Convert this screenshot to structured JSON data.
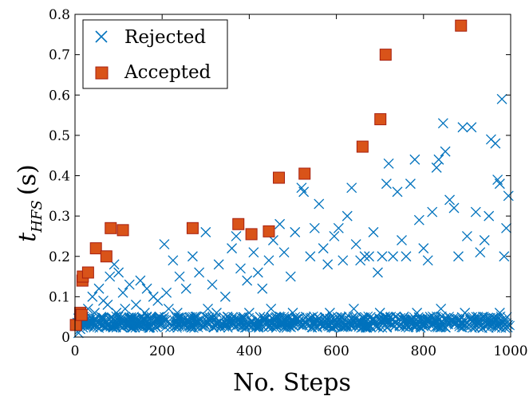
{
  "chart_data": {
    "type": "scatter",
    "xlabel": "No. Steps",
    "ylabel_main": "t",
    "ylabel_sub": "HFS",
    "ylabel_unit": "(s)",
    "xlim": [
      0,
      1000
    ],
    "ylim": [
      0,
      0.8
    ],
    "xticks": [
      0,
      200,
      400,
      600,
      800,
      1000
    ],
    "yticks": [
      0,
      0.1,
      0.2,
      0.3,
      0.4,
      0.5,
      0.6,
      0.7,
      0.8
    ],
    "xtick_labels": [
      "0",
      "200",
      "400",
      "600",
      "800",
      "1000"
    ],
    "ytick_labels": [
      "0",
      "0.1",
      "0.2",
      "0.3",
      "0.4",
      "0.5",
      "0.6",
      "0.7",
      "0.8"
    ],
    "legend_position": "top-left",
    "grid": false,
    "series": [
      {
        "name": "Rejected",
        "marker": "x",
        "color": "#0072BD",
        "points": [
          [
            8,
            0.01
          ],
          [
            12,
            0.02
          ],
          [
            20,
            0.05
          ],
          [
            30,
            0.07
          ],
          [
            40,
            0.1
          ],
          [
            55,
            0.12
          ],
          [
            65,
            0.09
          ],
          [
            80,
            0.15
          ],
          [
            90,
            0.18
          ],
          [
            100,
            0.16
          ],
          [
            110,
            0.11
          ],
          [
            125,
            0.13
          ],
          [
            140,
            0.08
          ],
          [
            150,
            0.14
          ],
          [
            165,
            0.12
          ],
          [
            180,
            0.1
          ],
          [
            190,
            0.09
          ],
          [
            205,
            0.23
          ],
          [
            210,
            0.11
          ],
          [
            225,
            0.19
          ],
          [
            240,
            0.15
          ],
          [
            255,
            0.12
          ],
          [
            270,
            0.2
          ],
          [
            285,
            0.16
          ],
          [
            300,
            0.26
          ],
          [
            315,
            0.13
          ],
          [
            330,
            0.18
          ],
          [
            345,
            0.1
          ],
          [
            360,
            0.22
          ],
          [
            370,
            0.25
          ],
          [
            380,
            0.17
          ],
          [
            395,
            0.14
          ],
          [
            410,
            0.21
          ],
          [
            420,
            0.16
          ],
          [
            430,
            0.12
          ],
          [
            445,
            0.19
          ],
          [
            455,
            0.24
          ],
          [
            470,
            0.28
          ],
          [
            480,
            0.21
          ],
          [
            495,
            0.15
          ],
          [
            505,
            0.26
          ],
          [
            520,
            0.37
          ],
          [
            525,
            0.36
          ],
          [
            540,
            0.2
          ],
          [
            550,
            0.27
          ],
          [
            560,
            0.33
          ],
          [
            570,
            0.22
          ],
          [
            580,
            0.18
          ],
          [
            595,
            0.25
          ],
          [
            605,
            0.27
          ],
          [
            615,
            0.19
          ],
          [
            625,
            0.3
          ],
          [
            635,
            0.37
          ],
          [
            645,
            0.23
          ],
          [
            655,
            0.19
          ],
          [
            665,
            0.2
          ],
          [
            675,
            0.2
          ],
          [
            685,
            0.26
          ],
          [
            695,
            0.16
          ],
          [
            705,
            0.2
          ],
          [
            715,
            0.38
          ],
          [
            720,
            0.43
          ],
          [
            730,
            0.2
          ],
          [
            740,
            0.36
          ],
          [
            750,
            0.24
          ],
          [
            760,
            0.2
          ],
          [
            770,
            0.38
          ],
          [
            780,
            0.44
          ],
          [
            790,
            0.29
          ],
          [
            800,
            0.22
          ],
          [
            810,
            0.19
          ],
          [
            820,
            0.31
          ],
          [
            830,
            0.42
          ],
          [
            835,
            0.44
          ],
          [
            845,
            0.53
          ],
          [
            850,
            0.46
          ],
          [
            860,
            0.34
          ],
          [
            870,
            0.32
          ],
          [
            880,
            0.2
          ],
          [
            890,
            0.52
          ],
          [
            900,
            0.25
          ],
          [
            910,
            0.52
          ],
          [
            920,
            0.31
          ],
          [
            930,
            0.21
          ],
          [
            940,
            0.24
          ],
          [
            950,
            0.3
          ],
          [
            955,
            0.49
          ],
          [
            965,
            0.48
          ],
          [
            970,
            0.39
          ],
          [
            975,
            0.38
          ],
          [
            980,
            0.59
          ],
          [
            985,
            0.2
          ],
          [
            990,
            0.27
          ],
          [
            995,
            0.35
          ],
          [
            25,
            0.04
          ],
          [
            45,
            0.06
          ],
          [
            60,
            0.05
          ],
          [
            75,
            0.08
          ],
          [
            95,
            0.06
          ],
          [
            115,
            0.07
          ],
          [
            135,
            0.05
          ],
          [
            160,
            0.06
          ],
          [
            175,
            0.04
          ],
          [
            195,
            0.05
          ],
          [
            215,
            0.07
          ],
          [
            235,
            0.06
          ],
          [
            260,
            0.04
          ],
          [
            280,
            0.05
          ],
          [
            305,
            0.07
          ],
          [
            325,
            0.06
          ],
          [
            350,
            0.05
          ],
          [
            375,
            0.04
          ],
          [
            400,
            0.06
          ],
          [
            425,
            0.05
          ],
          [
            450,
            0.07
          ],
          [
            475,
            0.04
          ],
          [
            500,
            0.06
          ],
          [
            530,
            0.05
          ],
          [
            555,
            0.04
          ],
          [
            585,
            0.06
          ],
          [
            610,
            0.05
          ],
          [
            640,
            0.07
          ],
          [
            670,
            0.04
          ],
          [
            700,
            0.06
          ],
          [
            725,
            0.05
          ],
          [
            755,
            0.04
          ],
          [
            785,
            0.06
          ],
          [
            815,
            0.05
          ],
          [
            840,
            0.07
          ],
          [
            865,
            0.04
          ],
          [
            895,
            0.06
          ],
          [
            925,
            0.05
          ],
          [
            945,
            0.04
          ],
          [
            975,
            0.06
          ]
        ]
      },
      {
        "name": "Accepted",
        "marker": "square",
        "color": "#D95319",
        "points": [
          [
            2,
            0.03
          ],
          [
            12,
            0.06
          ],
          [
            15,
            0.055
          ],
          [
            17,
            0.14
          ],
          [
            18,
            0.15
          ],
          [
            30,
            0.16
          ],
          [
            48,
            0.22
          ],
          [
            72,
            0.2
          ],
          [
            82,
            0.27
          ],
          [
            110,
            0.265
          ],
          [
            270,
            0.27
          ],
          [
            375,
            0.28
          ],
          [
            405,
            0.255
          ],
          [
            445,
            0.262
          ],
          [
            468,
            0.395
          ],
          [
            527,
            0.405
          ],
          [
            660,
            0.472
          ],
          [
            701,
            0.54
          ],
          [
            713,
            0.7
          ],
          [
            886,
            0.772
          ]
        ]
      }
    ]
  }
}
